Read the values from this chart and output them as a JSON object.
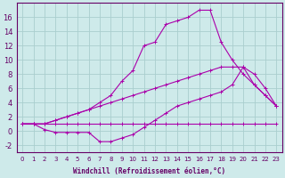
{
  "xlabel": "Windchill (Refroidissement éolien,°C)",
  "bg_color": "#ceeaea",
  "grid_color": "#aacece",
  "line_color": "#aa00aa",
  "xlim": [
    -0.5,
    23.5
  ],
  "ylim": [
    -3,
    18
  ],
  "xticks": [
    0,
    1,
    2,
    3,
    4,
    5,
    6,
    7,
    8,
    9,
    10,
    11,
    12,
    13,
    14,
    15,
    16,
    17,
    18,
    19,
    20,
    21,
    22,
    23
  ],
  "yticks": [
    -2,
    0,
    2,
    4,
    6,
    8,
    10,
    12,
    14,
    16
  ],
  "line1_x": [
    0,
    1,
    2,
    3,
    4,
    5,
    6,
    7,
    8,
    9,
    10,
    11,
    12,
    13,
    14,
    15,
    16,
    17,
    18,
    19,
    20,
    21,
    22,
    23
  ],
  "line1_y": [
    1,
    1,
    1,
    1,
    1,
    1,
    1,
    1,
    1,
    1,
    1,
    1,
    1,
    1,
    1,
    1,
    1,
    1,
    1,
    1,
    1,
    1,
    1,
    1
  ],
  "line2_x": [
    0,
    1,
    2,
    3,
    4,
    5,
    6,
    7,
    8,
    9,
    10,
    11,
    12,
    13,
    14,
    15,
    16,
    17,
    18,
    19,
    20,
    21,
    22,
    23
  ],
  "line2_y": [
    1,
    1,
    0.2,
    -0.2,
    -0.2,
    -0.2,
    -0.2,
    -1.5,
    -1.5,
    -1,
    -0.5,
    0.5,
    1.5,
    2.5,
    3.5,
    4,
    4.5,
    5,
    5.5,
    6.5,
    9,
    6.5,
    5,
    3.5
  ],
  "line3_x": [
    0,
    1,
    2,
    3,
    4,
    5,
    6,
    7,
    8,
    9,
    10,
    11,
    12,
    13,
    14,
    15,
    16,
    17,
    18,
    19,
    20,
    21,
    22,
    23
  ],
  "line3_y": [
    1,
    1,
    1,
    1.5,
    2,
    2.5,
    3,
    3.5,
    4,
    4.5,
    5,
    5.5,
    6,
    6.5,
    7,
    7.5,
    8,
    8.5,
    9,
    9,
    9,
    8,
    6,
    3.5
  ],
  "line4_x": [
    0,
    1,
    2,
    3,
    4,
    5,
    6,
    7,
    8,
    9,
    10,
    11,
    12,
    13,
    14,
    15,
    16,
    17,
    18,
    19,
    20,
    21,
    22,
    23
  ],
  "line4_y": [
    1,
    1,
    1,
    1.5,
    2,
    2.5,
    3,
    4,
    5,
    7,
    8.5,
    12,
    12.5,
    15,
    15.5,
    16,
    17,
    17,
    12.5,
    10,
    8,
    6.5,
    5,
    3.5
  ],
  "xlabel_fontsize": 5.5,
  "tick_fontsize_x": 5,
  "tick_fontsize_y": 6,
  "linewidth": 0.8,
  "markersize": 3
}
